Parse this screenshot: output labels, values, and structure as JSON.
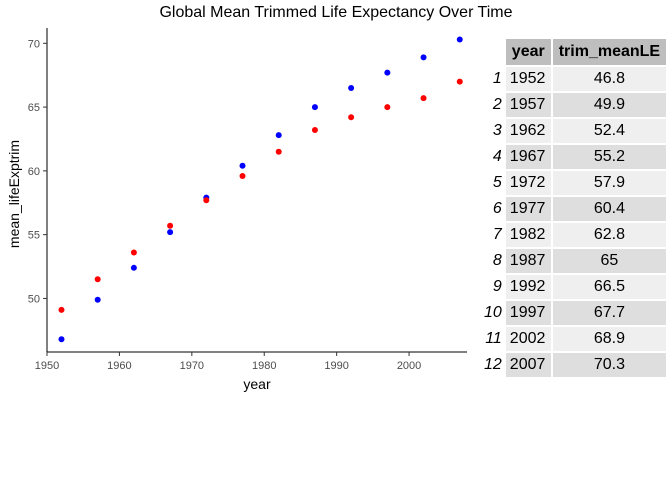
{
  "chart_data": {
    "type": "scatter",
    "title": "Global Mean Trimmed Life Expectancy Over Time",
    "xlabel": "year",
    "ylabel": "mean_lifeExptrim",
    "xlim": [
      1950,
      2008
    ],
    "ylim": [
      45.8,
      71.2
    ],
    "xticks": [
      1950,
      1960,
      1970,
      1980,
      1990,
      2000
    ],
    "yticks": [
      50,
      55,
      60,
      65,
      70
    ],
    "grid": false,
    "series": [
      {
        "color": "#0000ff",
        "x": [
          1952,
          1957,
          1962,
          1967,
          1972,
          1977,
          1982,
          1987,
          1992,
          1997,
          2002,
          2007
        ],
        "y": [
          46.8,
          49.9,
          52.4,
          55.2,
          57.9,
          60.4,
          62.8,
          65.0,
          66.5,
          67.7,
          68.9,
          70.3
        ]
      },
      {
        "color": "#ff0000",
        "x": [
          1952,
          1957,
          1962,
          1967,
          1972,
          1977,
          1982,
          1987,
          1992,
          1997,
          2002,
          2007
        ],
        "y": [
          49.1,
          51.5,
          53.6,
          55.7,
          57.7,
          59.6,
          61.5,
          63.2,
          64.2,
          65.0,
          65.7,
          67.0
        ]
      }
    ]
  },
  "table": {
    "columns": [
      "year",
      "trim_meanLE"
    ],
    "rows": [
      {
        "n": "1",
        "year": "1952",
        "le": "46.8"
      },
      {
        "n": "2",
        "year": "1957",
        "le": "49.9"
      },
      {
        "n": "3",
        "year": "1962",
        "le": "52.4"
      },
      {
        "n": "4",
        "year": "1967",
        "le": "55.2"
      },
      {
        "n": "5",
        "year": "1972",
        "le": "57.9"
      },
      {
        "n": "6",
        "year": "1977",
        "le": "60.4"
      },
      {
        "n": "7",
        "year": "1982",
        "le": "62.8"
      },
      {
        "n": "8",
        "year": "1987",
        "le": "65"
      },
      {
        "n": "9",
        "year": "1992",
        "le": "66.5"
      },
      {
        "n": "10",
        "year": "1997",
        "le": "67.7"
      },
      {
        "n": "11",
        "year": "2002",
        "le": "68.9"
      },
      {
        "n": "12",
        "year": "2007",
        "le": "70.3"
      }
    ]
  }
}
